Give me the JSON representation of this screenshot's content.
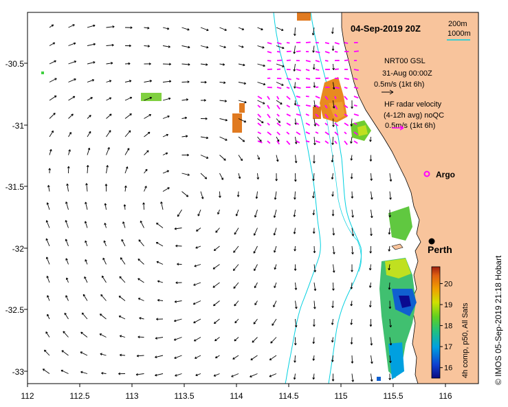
{
  "title": "04-Sep-2019 20Z",
  "depth_legend": {
    "line1": "200m",
    "line2": "1000m",
    "line_color": "#00c8c8"
  },
  "velocity_legend": {
    "model_label": "NRT00 GSL",
    "model_date": "31-Aug 00:00Z",
    "model_scale": "0.5m/s (1kt 6h)",
    "radar_label1": "HF radar velocity",
    "radar_label2": "(4-12h avg) noQC",
    "radar_scale": "0.5m/s (1kt 6h)",
    "radar_color": "#ff00ff"
  },
  "argo_label": "Argo",
  "city_label": "Perth",
  "x_ticks": [
    "112",
    "112.5",
    "113",
    "113.5",
    "114",
    "114.5",
    "115",
    "115.5",
    "116"
  ],
  "y_ticks": [
    "-30.5",
    "-31",
    "-31.5",
    "-32",
    "-32.5",
    "-33"
  ],
  "colorbar": {
    "ticks": [
      "20",
      "19",
      "18",
      "17",
      "16"
    ],
    "min": 15.5,
    "max": 20.8,
    "caption": "4h comp, p50, All Sats"
  },
  "credit": "© IMOS 05-Sep-2019 21:18 Hobart",
  "colors": {
    "land": "#f8c49c",
    "arrow": "#000000",
    "contour": "#00d0e0"
  }
}
